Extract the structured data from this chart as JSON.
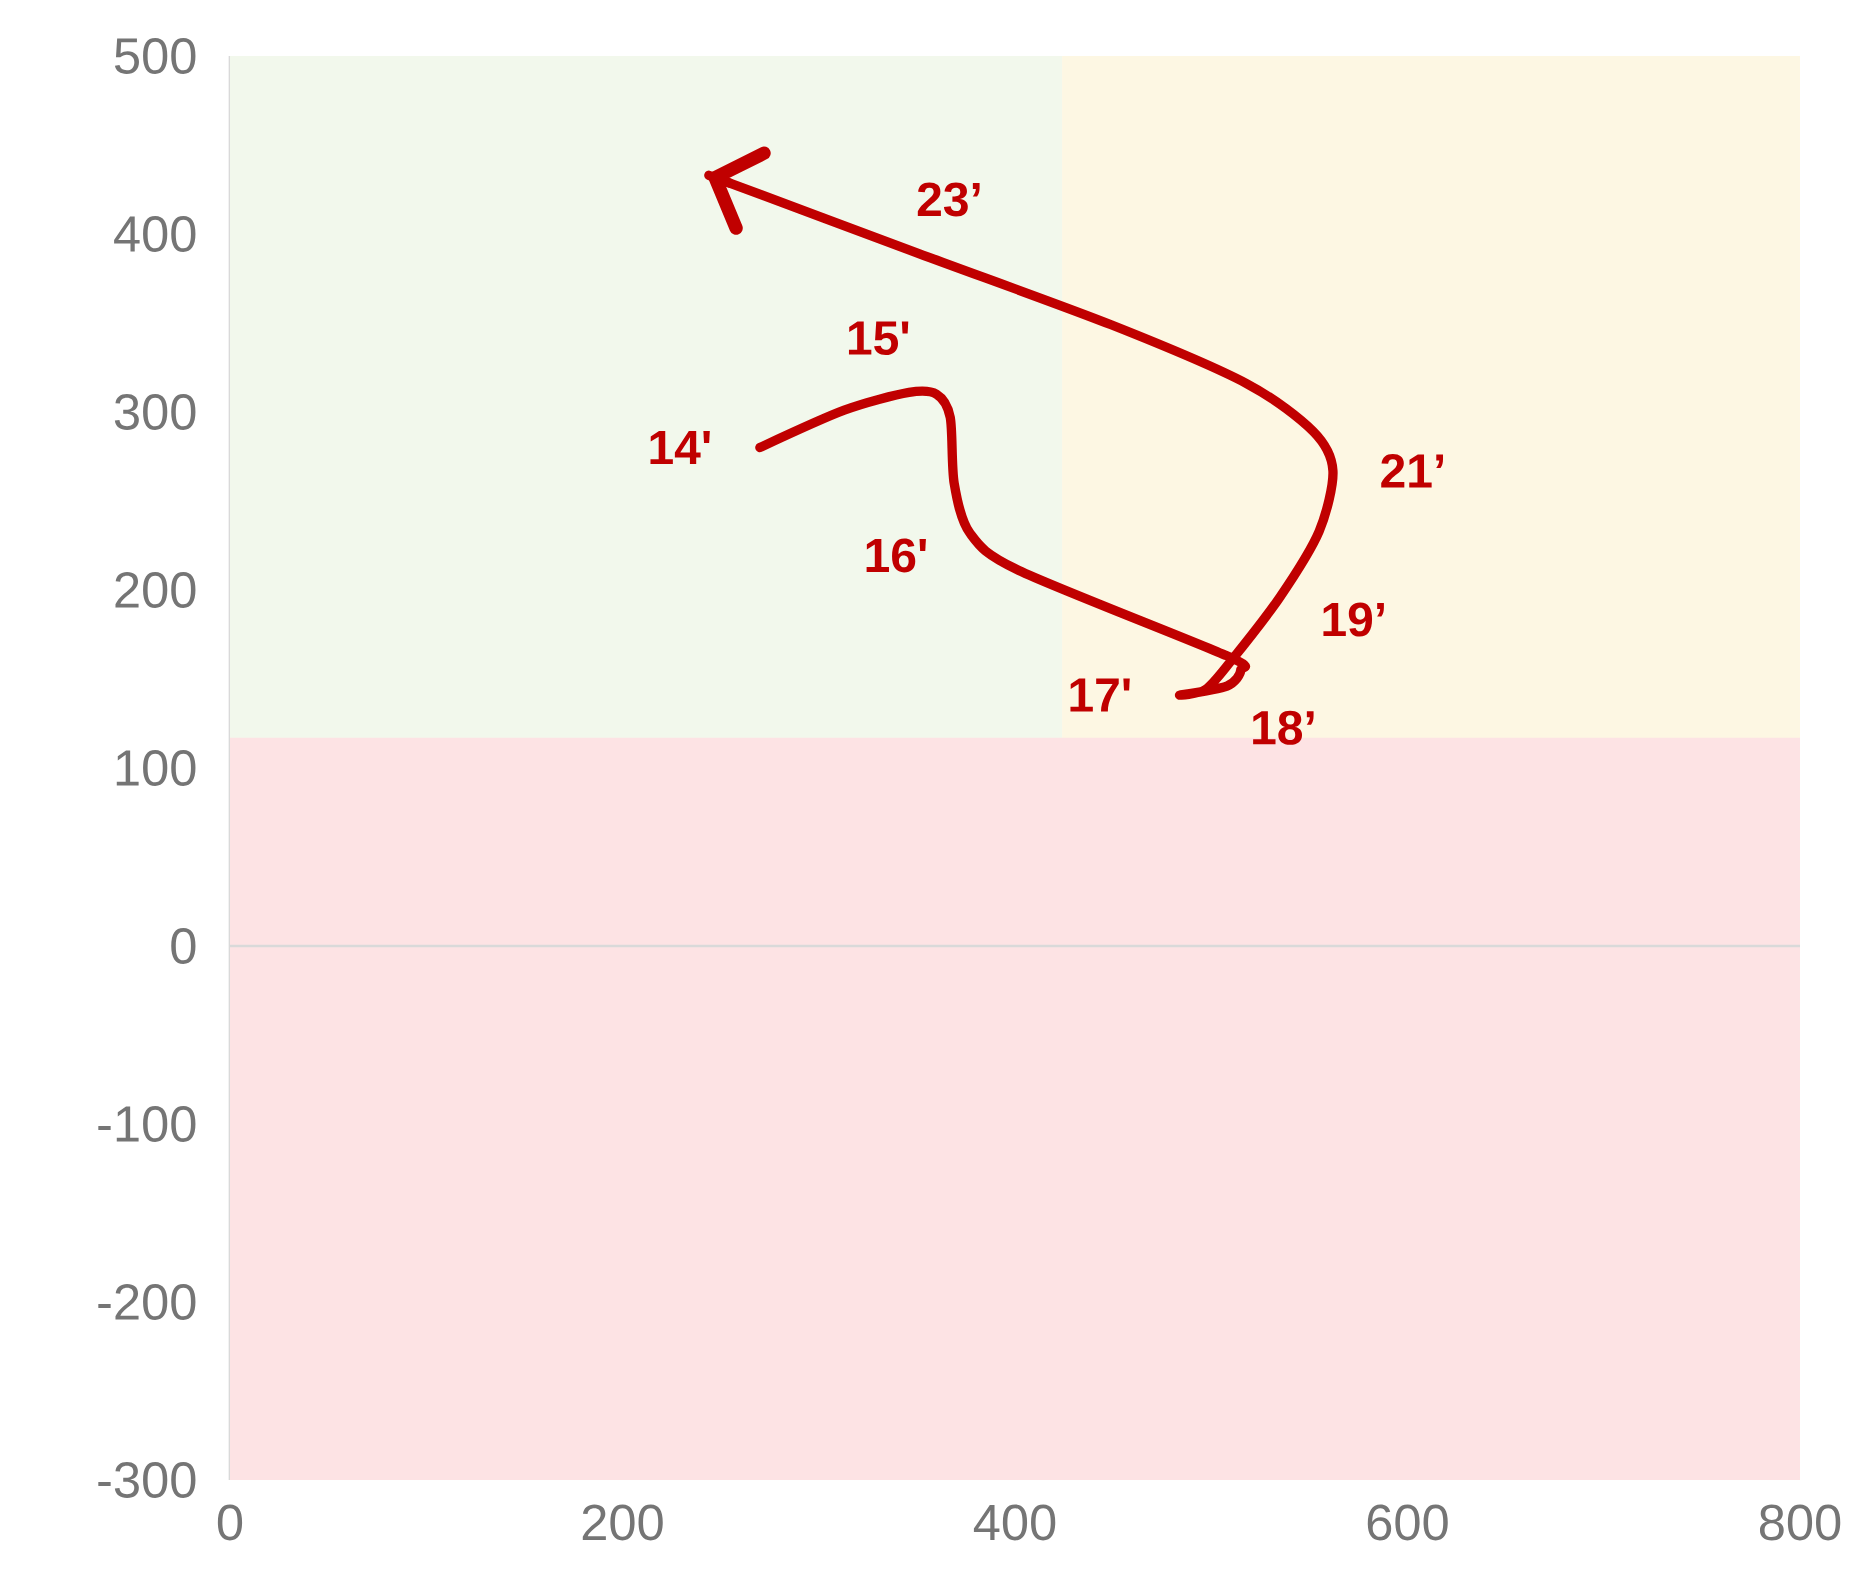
{
  "chart_data": {
    "type": "line",
    "xlim": [
      0,
      800
    ],
    "ylim": [
      -300,
      500
    ],
    "xticks": [
      0,
      200,
      400,
      600,
      800
    ],
    "yticks": [
      -300,
      -200,
      -100,
      0,
      100,
      200,
      300,
      400,
      500
    ],
    "marker": "none",
    "line_style": "solid",
    "series": [
      {
        "color": "#c00000",
        "x": [
          270,
          313,
          346,
          360,
          367,
          369,
          377,
          402,
          508,
          515,
          508,
          484,
          497,
          510,
          535,
          555,
          562,
          552,
          518,
          449,
          351,
          244
        ],
        "values": [
          280,
          301,
          311,
          310,
          297,
          260,
          232,
          211,
          163,
          155,
          146,
          141,
          144,
          160,
          196,
          233,
          267,
          289,
          316,
          349,
          389,
          433
        ]
      }
    ],
    "bands": [
      {
        "axis": "x",
        "from": 0,
        "to": 424,
        "color": "#f2f8ec"
      },
      {
        "axis": "x",
        "from": 424,
        "to": 800,
        "color": "#fdf7e3"
      },
      {
        "axis": "y",
        "from": -300,
        "to": 117,
        "color": "#fde3e4"
      }
    ],
    "ref_lines": [
      {
        "axis": "y",
        "value": 0,
        "color": "#d9d9d9"
      }
    ],
    "annotations": [
      {
        "text": "14'",
        "x": 270,
        "y": 280
      },
      {
        "text": "15'",
        "x": 346,
        "y": 311
      },
      {
        "text": "16'",
        "x": 377,
        "y": 232
      },
      {
        "text": "17'",
        "x": 484,
        "y": 141
      },
      {
        "text": "18’",
        "x": 508,
        "y": 146
      },
      {
        "text": "19’",
        "x": 535,
        "y": 196
      },
      {
        "text": "21’",
        "x": 562,
        "y": 267
      },
      {
        "text": "23’",
        "x": 351,
        "y": 389
      }
    ]
  }
}
